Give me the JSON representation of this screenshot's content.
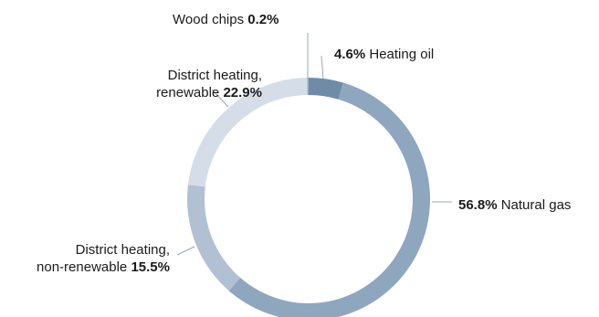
{
  "chart_data": {
    "type": "pie",
    "variant": "donut",
    "segments": [
      {
        "label": "Heating oil",
        "value": 4.6,
        "value_text": "4.6%",
        "color": "#6f8ba7"
      },
      {
        "label": "Natural gas",
        "value": 56.8,
        "value_text": "56.8%",
        "color": "#8fa6bf"
      },
      {
        "label_lines": [
          "District heating,",
          "non-renewable"
        ],
        "value": 15.5,
        "value_text": "15.5%",
        "color": "#b1c1d3"
      },
      {
        "label_lines": [
          "District heating,",
          "renewable"
        ],
        "value": 22.9,
        "value_text": "22.9%",
        "color": "#d5dee8"
      },
      {
        "label": "Wood chips",
        "value": 0.2,
        "value_text": "0.2%",
        "color": "#9fb2c6"
      }
    ],
    "leader_line_color": "#9aa7b5"
  }
}
